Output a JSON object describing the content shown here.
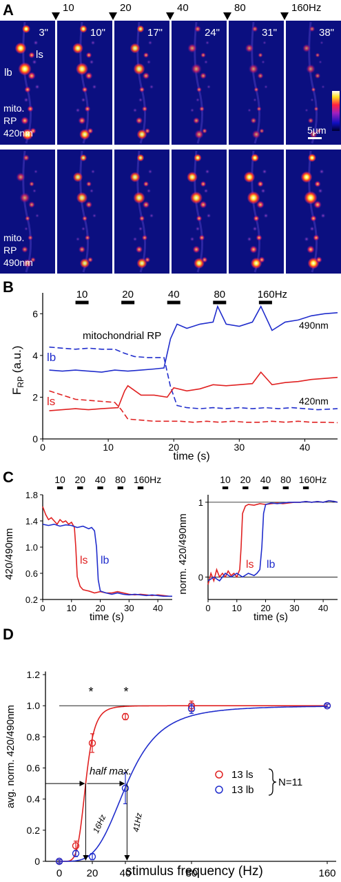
{
  "panel_letters": {
    "A": "A",
    "B": "B",
    "C": "C",
    "D": "D"
  },
  "panel_A": {
    "stim_markers": [
      "10",
      "20",
      "40",
      "80",
      "160Hz"
    ],
    "times": [
      "3\"",
      "10\"",
      "17\"",
      "24\"",
      "31\"",
      "38\""
    ],
    "row1_label": [
      "mito.",
      "RP",
      "420nm"
    ],
    "row2_label": [
      "mito.",
      "RP",
      "490nm"
    ],
    "terminal_labels": {
      "ls": "ls",
      "lb": "lb"
    },
    "scalebar": "5µm"
  },
  "panel_B": {
    "stim_labels": [
      "10",
      "20",
      "40",
      "80",
      "160Hz"
    ],
    "annotation": "mitochondrial RP",
    "label_490": "490nm",
    "label_420": "420nm",
    "label_lb": "lb",
    "label_ls": "ls",
    "ylabel_main": "F",
    "ylabel_sub": "RP",
    "ylabel_unit": " (a.u.)",
    "xlabel": "time (s)",
    "yticks": [
      "0",
      "2",
      "4",
      "6"
    ],
    "xticks": [
      "0",
      "10",
      "20",
      "30",
      "40"
    ]
  },
  "panel_C": {
    "stim_labels": [
      "10",
      "20",
      "40",
      "80",
      "160Hz"
    ],
    "left_ylabel": "420/490nm",
    "right_ylabel": "norm. 420/490nm",
    "xlabel": "time (s)",
    "left_yticks": [
      "0.2",
      "0.6",
      "1.0",
      "1.4",
      "1.8"
    ],
    "right_yticks": [
      "0",
      "1"
    ],
    "xticks": [
      "0",
      "10",
      "20",
      "30",
      "40"
    ],
    "label_ls": "ls",
    "label_lb": "lb"
  },
  "panel_D": {
    "ylabel": "avg. norm. 420/490nm",
    "xlabel": "stimulus frequency (Hz)",
    "yticks": [
      "0",
      "0.2",
      "0.4",
      "0.6",
      "0.8",
      "1.0",
      "1.2"
    ],
    "xticks": [
      "0",
      "20",
      "40",
      "80",
      "160"
    ],
    "half_max": "half max.",
    "hz16": "16Hz",
    "hz41": "41Hz",
    "star": "*",
    "legend_ls": "13 ls",
    "legend_lb": "13 lb",
    "legend_n": "N=11"
  },
  "chart_data": [
    {
      "type": "line",
      "title": "mitochondrial RP",
      "xlabel": "time (s)",
      "ylabel": "FRP (a.u.)",
      "xlim": [
        0,
        45
      ],
      "ylim": [
        0,
        7
      ],
      "stimulus_frequencies_hz": [
        10,
        20,
        40,
        80,
        160
      ],
      "stimulus_times_s": [
        [
          5,
          7
        ],
        [
          12,
          14
        ],
        [
          19,
          21
        ],
        [
          26,
          28
        ],
        [
          33,
          35
        ]
      ],
      "series": [
        {
          "name": "lb 490nm",
          "color": "#1f2ccc",
          "x": [
            1,
            3,
            5,
            7,
            9,
            11,
            13,
            15,
            17,
            18.5,
            19.5,
            20.5,
            22,
            24,
            26,
            26.7,
            28,
            30,
            32,
            33.3,
            35,
            37,
            39,
            41,
            43,
            45
          ],
          "y": [
            3.3,
            3.25,
            3.3,
            3.25,
            3.2,
            3.3,
            3.25,
            3.3,
            3.35,
            3.4,
            4.8,
            5.5,
            5.3,
            5.5,
            5.6,
            6.35,
            5.5,
            5.4,
            5.6,
            6.35,
            5.2,
            5.6,
            5.7,
            5.9,
            6.0,
            6.05
          ]
        },
        {
          "name": "lb 420nm",
          "color": "#1f2ccc",
          "x": [
            1,
            3,
            5,
            7,
            9,
            11,
            12.5,
            14,
            16,
            18.5,
            19.5,
            20.5,
            22,
            24,
            26,
            28,
            30,
            32,
            34,
            36,
            38,
            40,
            42,
            45
          ],
          "y": [
            4.4,
            4.35,
            4.3,
            4.35,
            4.3,
            4.3,
            4.1,
            3.95,
            3.9,
            3.9,
            2.5,
            1.6,
            1.5,
            1.45,
            1.5,
            1.45,
            1.5,
            1.45,
            1.5,
            1.45,
            1.5,
            1.45,
            1.4,
            1.45
          ]
        },
        {
          "name": "ls 490nm",
          "color": "#e02020",
          "x": [
            1,
            3,
            5,
            7,
            9,
            11.5,
            12.5,
            13,
            15,
            17,
            19,
            20,
            22,
            24,
            26,
            28,
            30,
            32,
            33.3,
            35,
            37,
            39,
            41,
            43,
            45
          ],
          "y": [
            1.35,
            1.4,
            1.45,
            1.4,
            1.45,
            1.5,
            2.3,
            2.55,
            2.1,
            2.1,
            2.0,
            2.45,
            2.3,
            2.4,
            2.6,
            2.55,
            2.6,
            2.65,
            3.2,
            2.6,
            2.7,
            2.75,
            2.85,
            2.9,
            2.95
          ]
        },
        {
          "name": "ls 420nm",
          "color": "#e02020",
          "x": [
            1,
            3,
            5,
            7,
            9,
            11,
            12,
            13,
            15,
            17,
            19,
            21,
            23,
            25,
            27,
            29,
            31,
            33,
            35,
            37,
            39,
            41,
            43,
            45
          ],
          "y": [
            2.3,
            2.1,
            1.9,
            1.85,
            1.8,
            1.75,
            1.4,
            0.95,
            0.9,
            0.85,
            0.85,
            0.85,
            0.8,
            0.85,
            0.8,
            0.85,
            0.8,
            0.8,
            0.85,
            0.8,
            0.85,
            0.8,
            0.8,
            0.78
          ]
        }
      ]
    },
    {
      "type": "line",
      "xlabel": "time (s)",
      "ylabel": "420/490nm",
      "xlim": [
        0,
        45
      ],
      "ylim": [
        0.2,
        1.8
      ],
      "series": [
        {
          "name": "ls",
          "color": "#e02020",
          "x": [
            0,
            1,
            2,
            3,
            4,
            5,
            6,
            7,
            8,
            9,
            10,
            11,
            11.5,
            12,
            13,
            14,
            16,
            18,
            20,
            22,
            24,
            26,
            28,
            30,
            32,
            34,
            36,
            38,
            40,
            42,
            44,
            45
          ],
          "y": [
            1.62,
            1.5,
            1.42,
            1.45,
            1.4,
            1.35,
            1.42,
            1.38,
            1.4,
            1.35,
            1.38,
            1.3,
            1.0,
            0.55,
            0.4,
            0.35,
            0.33,
            0.3,
            0.32,
            0.3,
            0.3,
            0.32,
            0.3,
            0.28,
            0.27,
            0.28,
            0.27,
            0.26,
            0.27,
            0.26,
            0.25,
            0.25
          ]
        },
        {
          "name": "lb",
          "color": "#1f2ccc",
          "x": [
            0,
            2,
            4,
            6,
            8,
            10,
            12,
            14,
            16,
            17,
            18,
            18.7,
            19.3,
            20,
            22,
            24,
            26,
            28,
            30,
            32,
            34,
            36,
            38,
            40,
            42,
            44,
            45
          ],
          "y": [
            1.35,
            1.33,
            1.35,
            1.32,
            1.34,
            1.33,
            1.3,
            1.32,
            1.28,
            1.3,
            1.25,
            1.0,
            0.5,
            0.33,
            0.3,
            0.28,
            0.3,
            0.28,
            0.27,
            0.28,
            0.27,
            0.26,
            0.27,
            0.26,
            0.25,
            0.25,
            0.25
          ]
        }
      ]
    },
    {
      "type": "line",
      "xlabel": "time (s)",
      "ylabel": "norm. 420/490nm",
      "xlim": [
        0,
        45
      ],
      "ylim": [
        -0.3,
        1.1
      ],
      "series": [
        {
          "name": "ls",
          "color": "#e02020",
          "x": [
            0,
            1,
            2,
            3,
            4,
            5,
            6,
            7,
            8,
            9,
            10,
            11,
            11.5,
            12,
            13,
            14,
            16,
            18,
            20,
            22,
            24,
            26,
            28,
            30,
            32,
            34,
            36,
            38,
            40,
            42,
            44,
            45
          ],
          "y": [
            -0.1,
            0.05,
            -0.05,
            0.1,
            0.0,
            0.05,
            0.0,
            0.08,
            0.02,
            0.05,
            0.0,
            0.1,
            0.4,
            0.85,
            0.95,
            0.97,
            0.96,
            0.98,
            0.97,
            0.98,
            0.99,
            0.98,
            0.99,
            1.0,
            1.0,
            1.01,
            1.0,
            1.01,
            1.0,
            1.02,
            1.01,
            1.0
          ]
        },
        {
          "name": "lb",
          "color": "#1f2ccc",
          "x": [
            0,
            2,
            4,
            6,
            8,
            10,
            12,
            14,
            16,
            17,
            18,
            18.7,
            19.3,
            20,
            22,
            24,
            26,
            28,
            30,
            32,
            34,
            36,
            38,
            40,
            42,
            44,
            45
          ],
          "y": [
            -0.05,
            0.0,
            -0.05,
            0.05,
            0.0,
            0.05,
            0.0,
            0.05,
            0.02,
            0.05,
            0.1,
            0.4,
            0.85,
            0.97,
            0.99,
            0.98,
            0.99,
            1.0,
            1.0,
            1.0,
            1.01,
            1.0,
            1.01,
            1.0,
            1.02,
            1.01,
            1.0
          ]
        }
      ]
    },
    {
      "type": "scatter",
      "xlabel": "stimulus frequency (Hz)",
      "ylabel": "avg. norm. 420/490nm",
      "xlim": [
        0,
        160
      ],
      "ylim": [
        0,
        1.2
      ],
      "series": [
        {
          "name": "13 ls",
          "color": "#e02020",
          "x": [
            0,
            10,
            20,
            40,
            80,
            160
          ],
          "y": [
            0.0,
            0.1,
            0.76,
            0.93,
            1.0,
            1.0
          ],
          "err": [
            0.01,
            0.03,
            0.06,
            0.02,
            0.03,
            0.01
          ],
          "half_max_hz": 16
        },
        {
          "name": "13 lb",
          "color": "#1f2ccc",
          "x": [
            0,
            10,
            20,
            40,
            80,
            160
          ],
          "y": [
            0.0,
            0.05,
            0.03,
            0.47,
            0.98,
            1.0
          ],
          "err": [
            0.01,
            0.02,
            0.02,
            0.1,
            0.03,
            0.01
          ],
          "half_max_hz": 41
        }
      ]
    }
  ]
}
